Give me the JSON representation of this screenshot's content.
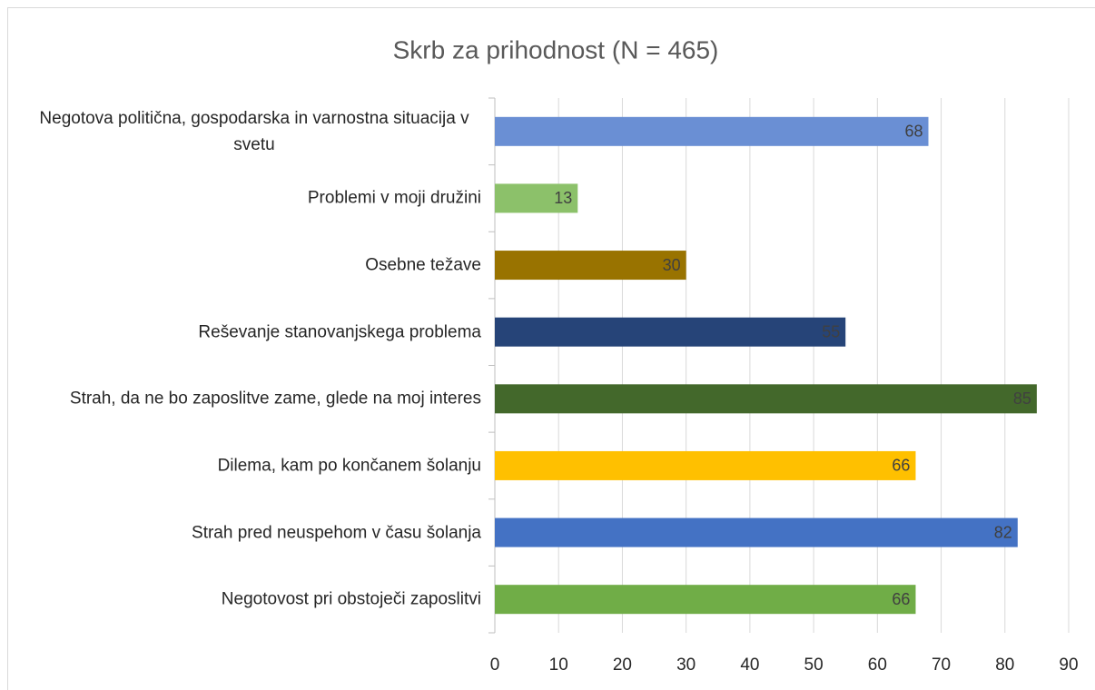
{
  "chart_data": {
    "type": "bar",
    "orientation": "horizontal",
    "title": "Skrb za prihodnost  (N = 465)",
    "categories": [
      "Negotova politična, gospodarska in varnostna situacija v svetu",
      "Problemi v moji družini",
      "Osebne težave",
      "Reševanje stanovanjskega problema",
      "Strah, da ne bo zaposlitve zame, glede na moj interes",
      "Dilema, kam po končanem šolanju",
      "Strah pred neuspehom v času šolanja",
      "Negotovost pri obstoječi zaposlitvi"
    ],
    "values": [
      68,
      13,
      30,
      55,
      85,
      66,
      82,
      66
    ],
    "colors": [
      "#6a8fd4",
      "#8cc16a",
      "#997300",
      "#264478",
      "#43682b",
      "#ffc000",
      "#4472c4",
      "#70ad47"
    ],
    "xlim": [
      0,
      90
    ],
    "xticks": [
      0,
      10,
      20,
      30,
      40,
      50,
      60,
      70,
      80,
      90
    ],
    "grid": true
  }
}
